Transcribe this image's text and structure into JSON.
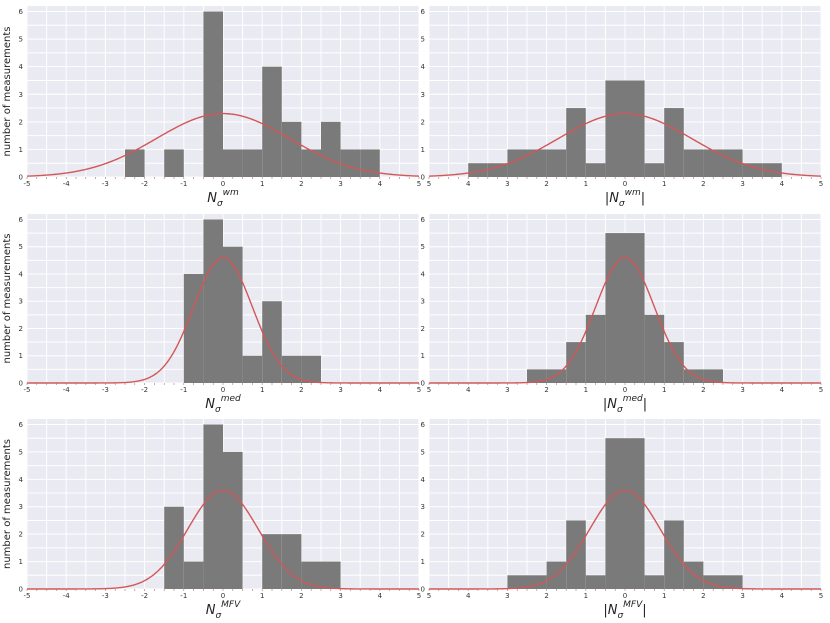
{
  "chart_data": [
    {
      "type": "bar",
      "ylabel": "number of measurements",
      "xlabel": {
        "prefix": "",
        "base": "N",
        "sub": "σ",
        "sup": "wm",
        "suffix": ""
      },
      "xlim": [
        -5,
        5
      ],
      "ylim": [
        0,
        6.2
      ],
      "xticks": [
        -5,
        -4,
        -3,
        -2,
        -1,
        0,
        1,
        2,
        3,
        4,
        5
      ],
      "xtick_labels": [
        "-5",
        "-4",
        "-3",
        "-2",
        "-1",
        "0",
        "1",
        "2",
        "3",
        "4",
        "5"
      ],
      "yticks": [
        0,
        1,
        2,
        3,
        4,
        5,
        6
      ],
      "bins": [
        {
          "x0": -2.5,
          "x1": -2.0,
          "value": 1
        },
        {
          "x0": -1.5,
          "x1": -1.0,
          "value": 1
        },
        {
          "x0": -0.5,
          "x1": 0.0,
          "value": 6
        },
        {
          "x0": 0.0,
          "x1": 0.5,
          "value": 1
        },
        {
          "x0": 0.5,
          "x1": 1.0,
          "value": 1
        },
        {
          "x0": 1.0,
          "x1": 1.5,
          "value": 4
        },
        {
          "x0": 1.5,
          "x1": 2.0,
          "value": 2
        },
        {
          "x0": 2.0,
          "x1": 2.5,
          "value": 1
        },
        {
          "x0": 2.5,
          "x1": 3.0,
          "value": 2
        },
        {
          "x0": 3.0,
          "x1": 3.5,
          "value": 1
        },
        {
          "x0": 3.5,
          "x1": 4.0,
          "value": 1
        }
      ],
      "gaussian": {
        "peak": 2.3,
        "mean": 0,
        "sigma": 1.7
      },
      "bar_color": "#7a7a7a",
      "curve_color": "#d05858"
    },
    {
      "type": "bar",
      "ylabel": "",
      "xlabel": {
        "prefix": "|",
        "base": "N",
        "sub": "σ",
        "sup": "wm",
        "suffix": "|"
      },
      "xlim": [
        -5,
        5
      ],
      "ylim": [
        0,
        6.2
      ],
      "xticks": [
        -5,
        -4,
        -3,
        -2,
        -1,
        0,
        1,
        2,
        3,
        4,
        5
      ],
      "xtick_labels": [
        "5",
        "4",
        "3",
        "2",
        "1",
        "0",
        "1",
        "2",
        "3",
        "4",
        "5"
      ],
      "yticks": [
        0,
        1,
        2,
        3,
        4,
        5,
        6
      ],
      "bins": [
        {
          "x0": -4.0,
          "x1": -3.5,
          "value": 0.5
        },
        {
          "x0": -3.5,
          "x1": -3.0,
          "value": 0.5
        },
        {
          "x0": -3.0,
          "x1": -2.5,
          "value": 1
        },
        {
          "x0": -2.5,
          "x1": -2.0,
          "value": 1
        },
        {
          "x0": -2.0,
          "x1": -1.5,
          "value": 1
        },
        {
          "x0": -1.5,
          "x1": -1.0,
          "value": 2.5
        },
        {
          "x0": -1.0,
          "x1": -0.5,
          "value": 0.5
        },
        {
          "x0": -0.5,
          "x1": 0.0,
          "value": 3.5
        },
        {
          "x0": 0.0,
          "x1": 0.5,
          "value": 3.5
        },
        {
          "x0": 0.5,
          "x1": 1.0,
          "value": 0.5
        },
        {
          "x0": 1.0,
          "x1": 1.5,
          "value": 2.5
        },
        {
          "x0": 1.5,
          "x1": 2.0,
          "value": 1
        },
        {
          "x0": 2.0,
          "x1": 2.5,
          "value": 1
        },
        {
          "x0": 2.5,
          "x1": 3.0,
          "value": 1
        },
        {
          "x0": 3.0,
          "x1": 3.5,
          "value": 0.5
        },
        {
          "x0": 3.5,
          "x1": 4.0,
          "value": 0.5
        }
      ],
      "gaussian": {
        "peak": 2.3,
        "mean": 0,
        "sigma": 1.7
      },
      "bar_color": "#7a7a7a",
      "curve_color": "#d05858"
    },
    {
      "type": "bar",
      "ylabel": "number of measurements",
      "xlabel": {
        "prefix": "",
        "base": "N",
        "sub": "σ",
        "sup": "med",
        "suffix": ""
      },
      "xlim": [
        -5,
        5
      ],
      "ylim": [
        0,
        6.2
      ],
      "xticks": [
        -5,
        -4,
        -3,
        -2,
        -1,
        0,
        1,
        2,
        3,
        4,
        5
      ],
      "xtick_labels": [
        "-5",
        "-4",
        "-3",
        "-2",
        "-1",
        "0",
        "1",
        "2",
        "3",
        "4",
        "5"
      ],
      "yticks": [
        0,
        1,
        2,
        3,
        4,
        5,
        6
      ],
      "bins": [
        {
          "x0": -1.0,
          "x1": -0.5,
          "value": 4
        },
        {
          "x0": -0.5,
          "x1": 0.0,
          "value": 6
        },
        {
          "x0": 0.0,
          "x1": 0.5,
          "value": 5
        },
        {
          "x0": 0.5,
          "x1": 1.0,
          "value": 1
        },
        {
          "x0": 1.0,
          "x1": 1.5,
          "value": 3
        },
        {
          "x0": 1.5,
          "x1": 2.0,
          "value": 1
        },
        {
          "x0": 2.0,
          "x1": 2.5,
          "value": 1
        }
      ],
      "gaussian": {
        "peak": 4.6,
        "mean": 0,
        "sigma": 0.75
      },
      "bar_color": "#7a7a7a",
      "curve_color": "#d05858"
    },
    {
      "type": "bar",
      "ylabel": "",
      "xlabel": {
        "prefix": "|",
        "base": "N",
        "sub": "σ",
        "sup": "med",
        "suffix": "|"
      },
      "xlim": [
        -5,
        5
      ],
      "ylim": [
        0,
        6.2
      ],
      "xticks": [
        -5,
        -4,
        -3,
        -2,
        -1,
        0,
        1,
        2,
        3,
        4,
        5
      ],
      "xtick_labels": [
        "5",
        "4",
        "3",
        "2",
        "1",
        "0",
        "1",
        "2",
        "3",
        "4",
        "5"
      ],
      "yticks": [
        0,
        1,
        2,
        3,
        4,
        5,
        6
      ],
      "bins": [
        {
          "x0": -2.5,
          "x1": -2.0,
          "value": 0.5
        },
        {
          "x0": -2.0,
          "x1": -1.5,
          "value": 0.5
        },
        {
          "x0": -1.5,
          "x1": -1.0,
          "value": 1.5
        },
        {
          "x0": -1.0,
          "x1": -0.5,
          "value": 2.5
        },
        {
          "x0": -0.5,
          "x1": 0.0,
          "value": 5.5
        },
        {
          "x0": 0.0,
          "x1": 0.5,
          "value": 5.5
        },
        {
          "x0": 0.5,
          "x1": 1.0,
          "value": 2.5
        },
        {
          "x0": 1.0,
          "x1": 1.5,
          "value": 1.5
        },
        {
          "x0": 1.5,
          "x1": 2.0,
          "value": 0.5
        },
        {
          "x0": 2.0,
          "x1": 2.5,
          "value": 0.5
        }
      ],
      "gaussian": {
        "peak": 4.6,
        "mean": 0,
        "sigma": 0.75
      },
      "bar_color": "#7a7a7a",
      "curve_color": "#d05858"
    },
    {
      "type": "bar",
      "ylabel": "number of measurements",
      "xlabel": {
        "prefix": "",
        "base": "N",
        "sub": "σ",
        "sup": "MFV",
        "suffix": ""
      },
      "xlim": [
        -5,
        5
      ],
      "ylim": [
        0,
        6.2
      ],
      "xticks": [
        -5,
        -4,
        -3,
        -2,
        -1,
        0,
        1,
        2,
        3,
        4,
        5
      ],
      "xtick_labels": [
        "-5",
        "-4",
        "-3",
        "-2",
        "-1",
        "0",
        "1",
        "2",
        "3",
        "4",
        "5"
      ],
      "yticks": [
        0,
        1,
        2,
        3,
        4,
        5,
        6
      ],
      "bins": [
        {
          "x0": -1.5,
          "x1": -1.0,
          "value": 3
        },
        {
          "x0": -1.0,
          "x1": -0.5,
          "value": 1
        },
        {
          "x0": -0.5,
          "x1": 0.0,
          "value": 6
        },
        {
          "x0": 0.0,
          "x1": 0.5,
          "value": 5
        },
        {
          "x0": 0.5,
          "x1": 1.0,
          "value": 0
        },
        {
          "x0": 1.0,
          "x1": 1.5,
          "value": 2
        },
        {
          "x0": 1.5,
          "x1": 2.0,
          "value": 2
        },
        {
          "x0": 2.0,
          "x1": 2.5,
          "value": 1
        },
        {
          "x0": 2.5,
          "x1": 3.0,
          "value": 1
        }
      ],
      "gaussian": {
        "peak": 3.6,
        "mean": 0,
        "sigma": 0.9
      },
      "bar_color": "#7a7a7a",
      "curve_color": "#d05858"
    },
    {
      "type": "bar",
      "ylabel": "",
      "xlabel": {
        "prefix": "|",
        "base": "N",
        "sub": "σ",
        "sup": "MFV",
        "suffix": "|"
      },
      "xlim": [
        -5,
        5
      ],
      "ylim": [
        0,
        6.2
      ],
      "xticks": [
        -5,
        -4,
        -3,
        -2,
        -1,
        0,
        1,
        2,
        3,
        4,
        5
      ],
      "xtick_labels": [
        "5",
        "4",
        "3",
        "2",
        "1",
        "0",
        "1",
        "2",
        "3",
        "4",
        "5"
      ],
      "yticks": [
        0,
        1,
        2,
        3,
        4,
        5,
        6
      ],
      "bins": [
        {
          "x0": -3.0,
          "x1": -2.5,
          "value": 0.5
        },
        {
          "x0": -2.5,
          "x1": -2.0,
          "value": 0.5
        },
        {
          "x0": -2.0,
          "x1": -1.5,
          "value": 1
        },
        {
          "x0": -1.5,
          "x1": -1.0,
          "value": 2.5
        },
        {
          "x0": -1.0,
          "x1": -0.5,
          "value": 0.5
        },
        {
          "x0": -0.5,
          "x1": 0.0,
          "value": 5.5
        },
        {
          "x0": 0.0,
          "x1": 0.5,
          "value": 5.5
        },
        {
          "x0": 0.5,
          "x1": 1.0,
          "value": 0.5
        },
        {
          "x0": 1.0,
          "x1": 1.5,
          "value": 2.5
        },
        {
          "x0": 1.5,
          "x1": 2.0,
          "value": 1
        },
        {
          "x0": 2.0,
          "x1": 2.5,
          "value": 0.5
        },
        {
          "x0": 2.5,
          "x1": 3.0,
          "value": 0.5
        }
      ],
      "gaussian": {
        "peak": 3.6,
        "mean": 0,
        "sigma": 0.9
      },
      "bar_color": "#7a7a7a",
      "curve_color": "#d05858"
    }
  ]
}
